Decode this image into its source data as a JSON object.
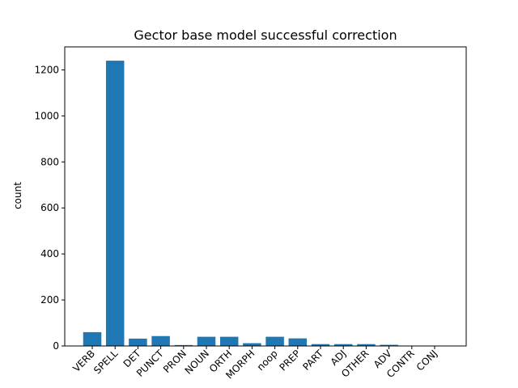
{
  "chart_data": {
    "type": "bar",
    "title": "Gector base model successful correction",
    "xlabel": "",
    "ylabel": "count",
    "categories": [
      "VERB",
      "SPELL",
      "DET",
      "PUNCT",
      "PRON",
      "NOUN",
      "ORTH",
      "MORPH",
      "noop",
      "PREP",
      "PART",
      "ADJ",
      "OTHER",
      "ADV",
      "CONTR",
      "CONJ"
    ],
    "values": [
      60,
      1240,
      32,
      43,
      4,
      40,
      40,
      12,
      40,
      33,
      8,
      8,
      8,
      5,
      1,
      1
    ],
    "ylim": [
      0,
      1300
    ],
    "yticks": [
      0,
      200,
      400,
      600,
      800,
      1000,
      1200
    ],
    "bar_color": "#1f77b4",
    "grid": false,
    "legend": "none"
  }
}
